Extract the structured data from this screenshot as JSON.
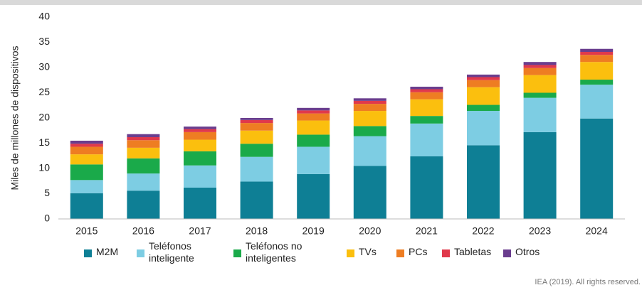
{
  "chart_data": {
    "type": "stacked_bar",
    "y_label": "Miles de millones de dispositivos",
    "categories": [
      "2015",
      "2016",
      "2017",
      "2018",
      "2019",
      "2020",
      "2021",
      "2022",
      "2023",
      "2024"
    ],
    "series": [
      {
        "name": "M2M",
        "color": "#0e7f95",
        "values": [
          5.1,
          5.6,
          6.2,
          7.4,
          8.9,
          10.5,
          12.4,
          14.6,
          17.2,
          19.9
        ]
      },
      {
        "name": "Teléfonos inteligente",
        "color": "#7dcde3",
        "values": [
          2.6,
          3.4,
          4.4,
          4.9,
          5.4,
          5.9,
          6.5,
          6.8,
          6.8,
          6.7
        ]
      },
      {
        "name": "Teléfonos no inteligentes",
        "color": "#1aaa4a",
        "values": [
          3.1,
          3.0,
          2.8,
          2.6,
          2.4,
          2.0,
          1.5,
          1.2,
          1.0,
          1.0
        ]
      },
      {
        "name": "TVs",
        "color": "#fbbf0e",
        "values": [
          2.0,
          2.1,
          2.3,
          2.6,
          2.8,
          3.0,
          3.3,
          3.5,
          3.5,
          3.5
        ]
      },
      {
        "name": "PCs",
        "color": "#ee7d22",
        "values": [
          1.5,
          1.5,
          1.5,
          1.5,
          1.4,
          1.4,
          1.4,
          1.4,
          1.4,
          1.4
        ]
      },
      {
        "name": "Tabletas",
        "color": "#e0394b",
        "values": [
          0.6,
          0.6,
          0.6,
          0.6,
          0.6,
          0.6,
          0.6,
          0.6,
          0.6,
          0.6
        ]
      },
      {
        "name": "Otros",
        "color": "#6a3d8e",
        "values": [
          0.6,
          0.6,
          0.5,
          0.4,
          0.5,
          0.5,
          0.5,
          0.5,
          0.6,
          0.6
        ]
      }
    ],
    "ylim": [
      0,
      40
    ],
    "yticks": [
      0,
      5,
      10,
      15,
      20,
      25,
      30,
      35,
      40
    ],
    "source": "IEA (2019). All rights reserved."
  }
}
